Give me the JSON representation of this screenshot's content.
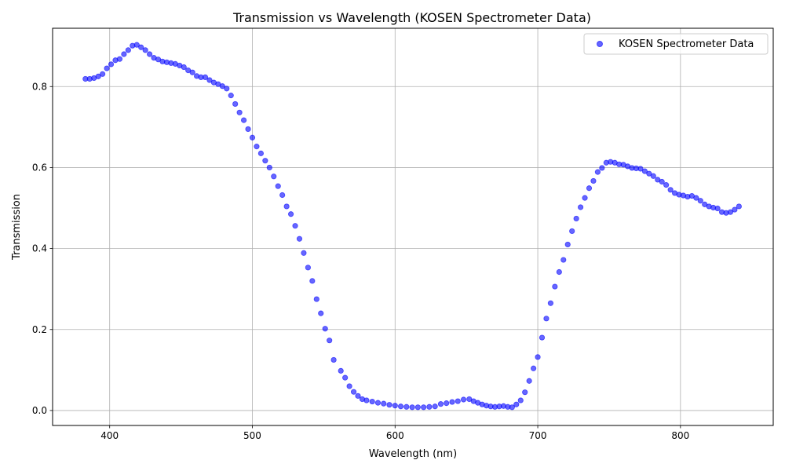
{
  "chart_data": {
    "type": "scatter",
    "title": "Transmission vs Wavelength (KOSEN Spectrometer Data)",
    "xlabel": "Wavelength (nm)",
    "ylabel": "Transmission",
    "xlim": [
      360,
      865
    ],
    "ylim": [
      -0.037,
      0.944
    ],
    "xticks": [
      400,
      500,
      600,
      700,
      800
    ],
    "yticks": [
      0.0,
      0.2,
      0.4,
      0.6,
      0.8
    ],
    "xtick_labels": [
      "400",
      "500",
      "600",
      "700",
      "800"
    ],
    "ytick_labels": [
      "0.0",
      "0.2",
      "0.4",
      "0.6",
      "0.8"
    ],
    "grid": true,
    "legend_position": "top-right",
    "series": [
      {
        "name": "KOSEN Spectrometer Data",
        "color": "#0000ff",
        "marker_opacity": 0.6,
        "points": [
          [
            383,
            0.819
          ],
          [
            386,
            0.819
          ],
          [
            389,
            0.821
          ],
          [
            392,
            0.825
          ],
          [
            395,
            0.831
          ],
          [
            398,
            0.845
          ],
          [
            401,
            0.855
          ],
          [
            404,
            0.865
          ],
          [
            407,
            0.868
          ],
          [
            410,
            0.88
          ],
          [
            413,
            0.89
          ],
          [
            416,
            0.901
          ],
          [
            419,
            0.903
          ],
          [
            422,
            0.897
          ],
          [
            425,
            0.89
          ],
          [
            428,
            0.88
          ],
          [
            431,
            0.871
          ],
          [
            434,
            0.867
          ],
          [
            437,
            0.862
          ],
          [
            440,
            0.86
          ],
          [
            443,
            0.858
          ],
          [
            446,
            0.856
          ],
          [
            449,
            0.852
          ],
          [
            452,
            0.848
          ],
          [
            455,
            0.84
          ],
          [
            458,
            0.835
          ],
          [
            461,
            0.826
          ],
          [
            464,
            0.823
          ],
          [
            467,
            0.823
          ],
          [
            470,
            0.816
          ],
          [
            473,
            0.81
          ],
          [
            476,
            0.806
          ],
          [
            479,
            0.801
          ],
          [
            482,
            0.795
          ],
          [
            485,
            0.778
          ],
          [
            488,
            0.757
          ],
          [
            491,
            0.736
          ],
          [
            494,
            0.717
          ],
          [
            497,
            0.695
          ],
          [
            500,
            0.674
          ],
          [
            503,
            0.652
          ],
          [
            506,
            0.635
          ],
          [
            509,
            0.617
          ],
          [
            512,
            0.6
          ],
          [
            515,
            0.578
          ],
          [
            518,
            0.554
          ],
          [
            521,
            0.532
          ],
          [
            524,
            0.504
          ],
          [
            527,
            0.485
          ],
          [
            530,
            0.456
          ],
          [
            533,
            0.424
          ],
          [
            536,
            0.389
          ],
          [
            539,
            0.353
          ],
          [
            542,
            0.32
          ],
          [
            545,
            0.275
          ],
          [
            548,
            0.24
          ],
          [
            551,
            0.202
          ],
          [
            554,
            0.173
          ],
          [
            557,
            0.125
          ],
          [
            562,
            0.098
          ],
          [
            565,
            0.081
          ],
          [
            568,
            0.06
          ],
          [
            571,
            0.046
          ],
          [
            574,
            0.036
          ],
          [
            577,
            0.028
          ],
          [
            580,
            0.025
          ],
          [
            584,
            0.022
          ],
          [
            588,
            0.019
          ],
          [
            592,
            0.017
          ],
          [
            596,
            0.014
          ],
          [
            600,
            0.012
          ],
          [
            604,
            0.01
          ],
          [
            608,
            0.009
          ],
          [
            612,
            0.008
          ],
          [
            616,
            0.008
          ],
          [
            620,
            0.008
          ],
          [
            624,
            0.009
          ],
          [
            628,
            0.01
          ],
          [
            632,
            0.016
          ],
          [
            636,
            0.018
          ],
          [
            640,
            0.021
          ],
          [
            644,
            0.023
          ],
          [
            648,
            0.027
          ],
          [
            652,
            0.028
          ],
          [
            655,
            0.023
          ],
          [
            658,
            0.019
          ],
          [
            661,
            0.015
          ],
          [
            664,
            0.012
          ],
          [
            667,
            0.01
          ],
          [
            670,
            0.009
          ],
          [
            673,
            0.01
          ],
          [
            676,
            0.011
          ],
          [
            679,
            0.009
          ],
          [
            682,
            0.008
          ],
          [
            685,
            0.015
          ],
          [
            688,
            0.025
          ],
          [
            691,
            0.045
          ],
          [
            694,
            0.073
          ],
          [
            697,
            0.104
          ],
          [
            700,
            0.132
          ],
          [
            703,
            0.18
          ],
          [
            706,
            0.227
          ],
          [
            709,
            0.265
          ],
          [
            712,
            0.306
          ],
          [
            715,
            0.342
          ],
          [
            718,
            0.372
          ],
          [
            721,
            0.41
          ],
          [
            724,
            0.443
          ],
          [
            727,
            0.474
          ],
          [
            730,
            0.502
          ],
          [
            733,
            0.525
          ],
          [
            736,
            0.549
          ],
          [
            739,
            0.567
          ],
          [
            742,
            0.589
          ],
          [
            745,
            0.599
          ],
          [
            748,
            0.612
          ],
          [
            751,
            0.614
          ],
          [
            754,
            0.612
          ],
          [
            757,
            0.608
          ],
          [
            760,
            0.607
          ],
          [
            763,
            0.603
          ],
          [
            766,
            0.599
          ],
          [
            769,
            0.598
          ],
          [
            772,
            0.597
          ],
          [
            775,
            0.591
          ],
          [
            778,
            0.585
          ],
          [
            781,
            0.579
          ],
          [
            784,
            0.57
          ],
          [
            787,
            0.565
          ],
          [
            790,
            0.557
          ],
          [
            793,
            0.545
          ],
          [
            796,
            0.537
          ],
          [
            799,
            0.533
          ],
          [
            802,
            0.531
          ],
          [
            805,
            0.528
          ],
          [
            808,
            0.53
          ],
          [
            811,
            0.525
          ],
          [
            814,
            0.518
          ],
          [
            817,
            0.509
          ],
          [
            820,
            0.504
          ],
          [
            823,
            0.501
          ],
          [
            826,
            0.499
          ],
          [
            829,
            0.49
          ],
          [
            832,
            0.488
          ],
          [
            835,
            0.49
          ],
          [
            838,
            0.496
          ],
          [
            841,
            0.504
          ]
        ]
      }
    ]
  }
}
